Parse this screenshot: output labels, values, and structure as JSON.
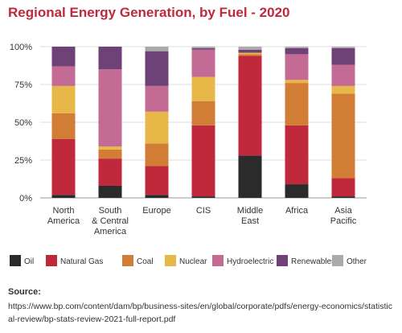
{
  "title": "Regional Energy Generation, by Fuel - 2020",
  "source": {
    "label": "Source:",
    "url": "https://www.bp.com/content/dam/bp/business-sites/en/global/corporate/pdfs/energy-economics/statistical-review/bp-stats-review-2021-full-report.pdf"
  },
  "chart_data": {
    "type": "bar",
    "stacked": true,
    "title": "Regional Energy Generation, by Fuel - 2020",
    "xlabel": "",
    "ylabel": "",
    "ylim": [
      0,
      100
    ],
    "y_ticks": [
      "0%",
      "25%",
      "50%",
      "75%",
      "100%"
    ],
    "grid": true,
    "legend_position": "bottom",
    "categories": [
      [
        "North",
        "America"
      ],
      [
        "South",
        "& Central",
        "America"
      ],
      [
        "Europe"
      ],
      [
        "CIS"
      ],
      [
        "Middle",
        "East"
      ],
      [
        "Africa"
      ],
      [
        "Asia",
        "Pacific"
      ]
    ],
    "series": [
      {
        "name": "Oil",
        "color": "#2b2b2b",
        "values": [
          2,
          8,
          2,
          1,
          28,
          9,
          1
        ]
      },
      {
        "name": "Natural Gas",
        "color": "#c0283b",
        "values": [
          37,
          18,
          19,
          47,
          66,
          39,
          12
        ]
      },
      {
        "name": "Coal",
        "color": "#d27d35",
        "values": [
          17,
          6,
          15,
          16,
          1,
          28,
          56
        ]
      },
      {
        "name": "Nuclear",
        "color": "#e7b847",
        "values": [
          18,
          2,
          21,
          16,
          1,
          2,
          5
        ]
      },
      {
        "name": "Hydroelectric",
        "color": "#c36b94",
        "values": [
          13,
          51,
          17,
          18,
          0,
          17,
          14
        ]
      },
      {
        "name": "Renewables",
        "color": "#6e4277",
        "values": [
          13,
          15,
          23,
          1,
          2,
          4,
          11
        ]
      },
      {
        "name": "Other",
        "color": "#aaaaaa",
        "values": [
          0,
          0,
          3,
          1,
          2,
          1,
          1
        ]
      }
    ]
  }
}
